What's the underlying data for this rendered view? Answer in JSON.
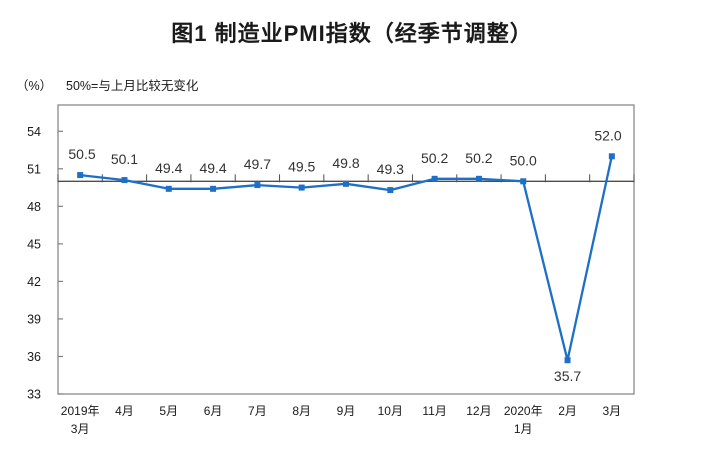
{
  "page": {
    "title": "图1 制造业PMI指数（经季节调整）",
    "unit_label": "（%）",
    "note": "50%=与上月比较无变化"
  },
  "chart_data": {
    "type": "line",
    "title": "图1 制造业PMI指数（经季节调整）",
    "unit": "%",
    "annotation": "50%=与上月比较无变化",
    "categories": [
      [
        "2019年",
        "3月"
      ],
      [
        "4月"
      ],
      [
        "5月"
      ],
      [
        "6月"
      ],
      [
        "7月"
      ],
      [
        "8月"
      ],
      [
        "9月"
      ],
      [
        "10月"
      ],
      [
        "11月"
      ],
      [
        "12月"
      ],
      [
        "2020年",
        "1月"
      ],
      [
        "2月"
      ],
      [
        "3月"
      ]
    ],
    "series": [
      {
        "name": "制造业PMI",
        "values": [
          50.5,
          50.1,
          49.4,
          49.4,
          49.7,
          49.5,
          49.8,
          49.3,
          50.2,
          50.2,
          50.0,
          35.7,
          52.0
        ]
      }
    ],
    "data_labels": [
      "50.5",
      "50.1",
      "49.4",
      "49.4",
      "49.7",
      "49.5",
      "49.8",
      "49.3",
      "50.2",
      "50.2",
      "50.0",
      "35.7",
      "52.0"
    ],
    "label_below_indices": [
      11
    ],
    "yticks": [
      33,
      36,
      39,
      42,
      45,
      48,
      51,
      54
    ],
    "ylim": [
      33,
      56.1
    ],
    "reference_line": 50,
    "grid": false,
    "legend": "none",
    "colors": {
      "line": "#1e6fc8",
      "marker": "#1e6fc8",
      "data_label": "#333333",
      "axis_text": "#1a1a1a",
      "plot_border": "#808080",
      "reference_axis": "#4d4d4d"
    }
  }
}
